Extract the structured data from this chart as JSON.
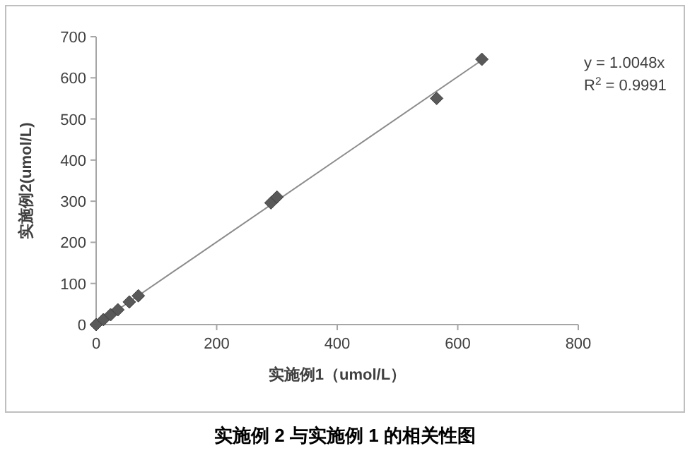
{
  "chart_data": {
    "type": "scatter",
    "title": "实施例 2 与实施例 1 的相关性图",
    "xlabel": "实施例1（umol/L）",
    "ylabel": "实施例2(umol/L)",
    "xlim": [
      0,
      800
    ],
    "ylim": [
      0,
      700
    ],
    "xticks": [
      0,
      200,
      400,
      600,
      800
    ],
    "yticks": [
      0,
      100,
      200,
      300,
      400,
      500,
      600,
      700
    ],
    "grid": false,
    "annotations": [
      "y = 1.0048x",
      "R$^{2}$ = 0.9991"
    ],
    "series": [
      {
        "color": "#595959",
        "marker": "diamond",
        "x": [
          0,
          12,
          24,
          36,
          55,
          70,
          290,
          300,
          565,
          640
        ],
        "values": [
          0,
          12,
          24,
          36,
          55,
          70,
          296,
          310,
          550,
          645
        ]
      },
      {
        "type": "line",
        "color": "#8c8c8c",
        "marker": "none",
        "x": [
          0,
          640
        ],
        "values": [
          0,
          643
        ]
      }
    ]
  }
}
